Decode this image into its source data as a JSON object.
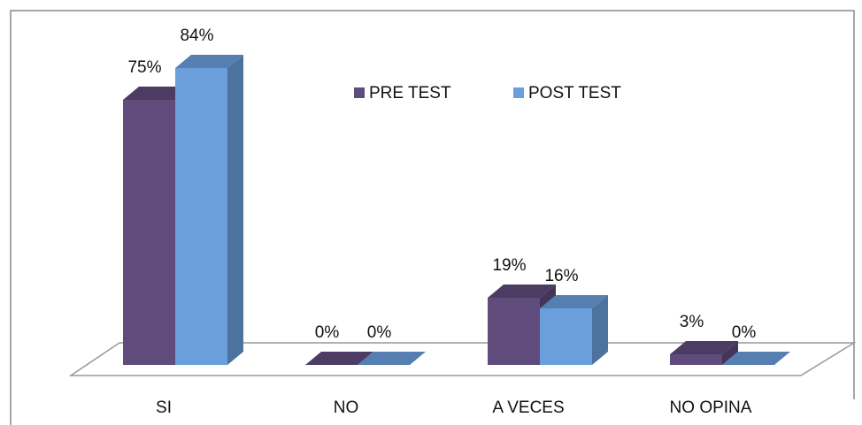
{
  "chart_data": {
    "type": "bar3d",
    "categories": [
      "SI",
      "NO",
      "A VECES",
      "NO OPINA"
    ],
    "series": [
      {
        "name": "PRE TEST",
        "color": "#5f4b7c",
        "values": [
          75,
          0,
          19,
          3
        ],
        "value_labels": [
          "75%",
          "0%",
          "19%",
          "3%"
        ]
      },
      {
        "name": "POST TEST",
        "color": "#6a9fdc",
        "values": [
          84,
          0,
          16,
          0
        ],
        "value_labels": [
          "84%",
          "0%",
          "16%",
          "0%"
        ]
      }
    ]
  }
}
